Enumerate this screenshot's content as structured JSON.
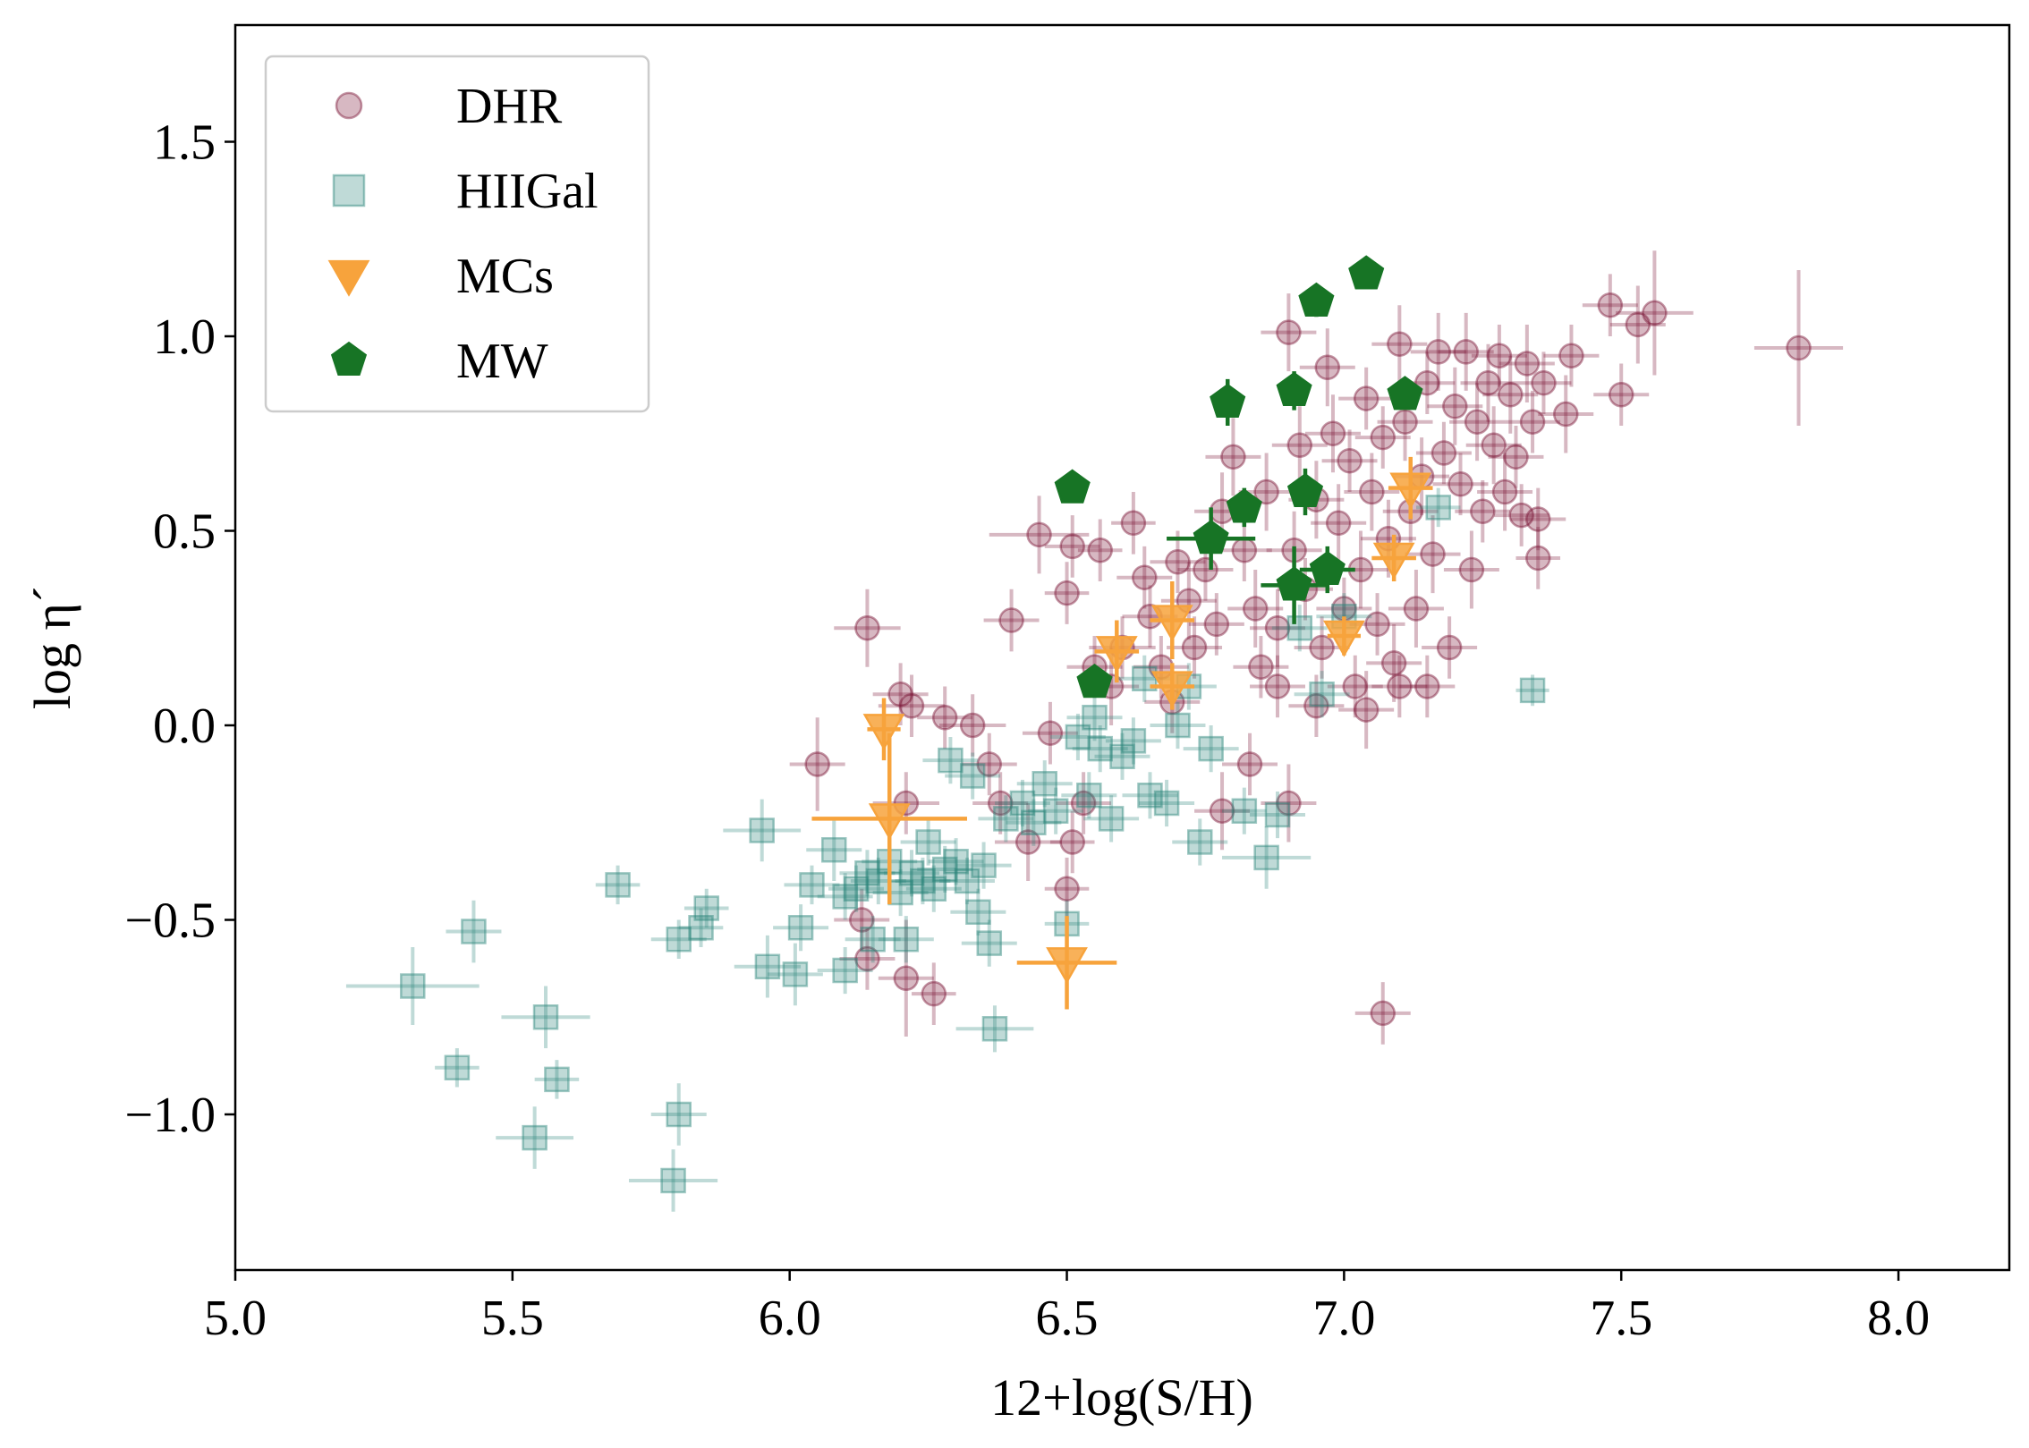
{
  "chart_data": {
    "type": "scatter",
    "title": "",
    "xlabel": "12+log(S/H)",
    "ylabel": "log η´",
    "xlim": [
      5.0,
      8.2
    ],
    "ylim": [
      -1.4,
      1.8
    ],
    "xticks": [
      5.0,
      5.5,
      6.0,
      6.5,
      7.0,
      7.5,
      8.0
    ],
    "xtick_labels": [
      "5.0",
      "5.5",
      "6.0",
      "6.5",
      "7.0",
      "7.5",
      "8.0"
    ],
    "yticks": [
      -1.0,
      -0.5,
      0.0,
      0.5,
      1.0,
      1.5
    ],
    "ytick_labels": [
      "−1.0",
      "−0.5",
      "0.0",
      "0.5",
      "1.0",
      "1.5"
    ],
    "grid": false,
    "legend_position": "top-left",
    "series": [
      {
        "name": "DHR",
        "marker": "circle",
        "color": "#7b1535",
        "alpha": 0.3,
        "points": [
          [
            6.05,
            -0.1,
            0.05,
            0.12
          ],
          [
            6.14,
            0.25,
            0.06,
            0.1
          ],
          [
            6.2,
            0.08,
            0.05,
            0.08
          ],
          [
            6.22,
            0.05,
            0.06,
            0.08
          ],
          [
            6.28,
            0.02,
            0.05,
            0.08
          ],
          [
            6.33,
            0.0,
            0.06,
            0.08
          ],
          [
            6.21,
            -0.2,
            0.06,
            0.08
          ],
          [
            6.13,
            -0.5,
            0.05,
            0.08
          ],
          [
            6.14,
            -0.6,
            0.05,
            0.08
          ],
          [
            6.21,
            -0.65,
            0.05,
            0.15
          ],
          [
            6.26,
            -0.69,
            0.04,
            0.08
          ],
          [
            6.36,
            -0.1,
            0.05,
            0.08
          ],
          [
            6.38,
            -0.2,
            0.05,
            0.08
          ],
          [
            6.43,
            -0.3,
            0.06,
            0.1
          ],
          [
            6.4,
            0.27,
            0.05,
            0.08
          ],
          [
            6.45,
            0.49,
            0.09,
            0.1
          ],
          [
            6.47,
            -0.02,
            0.05,
            0.08
          ],
          [
            6.5,
            0.34,
            0.04,
            0.08
          ],
          [
            6.51,
            0.46,
            0.05,
            0.08
          ],
          [
            6.56,
            0.45,
            0.04,
            0.08
          ],
          [
            6.5,
            -0.42,
            0.04,
            0.08
          ],
          [
            6.51,
            -0.3,
            0.04,
            0.08
          ],
          [
            6.53,
            -0.2,
            0.05,
            0.08
          ],
          [
            6.55,
            0.15,
            0.05,
            0.08
          ],
          [
            6.58,
            0.1,
            0.05,
            0.1
          ],
          [
            6.6,
            0.2,
            0.06,
            0.08
          ],
          [
            6.62,
            0.52,
            0.04,
            0.08
          ],
          [
            6.64,
            0.38,
            0.05,
            0.08
          ],
          [
            6.65,
            0.28,
            0.05,
            0.08
          ],
          [
            6.67,
            0.15,
            0.05,
            0.08
          ],
          [
            6.7,
            0.42,
            0.05,
            0.08
          ],
          [
            6.72,
            0.32,
            0.05,
            0.1
          ],
          [
            6.73,
            0.2,
            0.05,
            0.08
          ],
          [
            6.75,
            0.4,
            0.05,
            0.08
          ],
          [
            6.77,
            0.26,
            0.05,
            0.08
          ],
          [
            6.78,
            0.55,
            0.05,
            0.1
          ],
          [
            6.8,
            0.69,
            0.05,
            0.1
          ],
          [
            6.82,
            0.45,
            0.05,
            0.08
          ],
          [
            6.84,
            0.3,
            0.05,
            0.1
          ],
          [
            6.85,
            0.15,
            0.05,
            0.08
          ],
          [
            6.86,
            0.6,
            0.05,
            0.1
          ],
          [
            6.88,
            0.25,
            0.05,
            0.1
          ],
          [
            6.9,
            1.01,
            0.05,
            0.1
          ],
          [
            6.91,
            0.45,
            0.05,
            0.1
          ],
          [
            6.92,
            0.72,
            0.05,
            0.1
          ],
          [
            6.93,
            0.35,
            0.05,
            0.08
          ],
          [
            6.95,
            0.58,
            0.05,
            0.1
          ],
          [
            6.96,
            0.2,
            0.05,
            0.08
          ],
          [
            6.97,
            0.92,
            0.05,
            0.1
          ],
          [
            6.98,
            0.75,
            0.05,
            0.1
          ],
          [
            6.99,
            0.52,
            0.05,
            0.1
          ],
          [
            7.0,
            0.3,
            0.05,
            0.08
          ],
          [
            7.01,
            0.68,
            0.05,
            0.08
          ],
          [
            7.02,
            0.1,
            0.05,
            0.08
          ],
          [
            7.03,
            0.4,
            0.05,
            0.1
          ],
          [
            7.04,
            0.84,
            0.05,
            0.08
          ],
          [
            7.05,
            0.6,
            0.05,
            0.1
          ],
          [
            7.06,
            0.26,
            0.05,
            0.08
          ],
          [
            7.07,
            0.74,
            0.05,
            0.08
          ],
          [
            7.08,
            0.48,
            0.05,
            0.1
          ],
          [
            7.09,
            0.16,
            0.05,
            0.1
          ],
          [
            7.1,
            0.98,
            0.05,
            0.1
          ],
          [
            7.11,
            0.78,
            0.05,
            0.1
          ],
          [
            7.12,
            0.55,
            0.05,
            0.08
          ],
          [
            7.13,
            0.3,
            0.05,
            0.1
          ],
          [
            7.14,
            0.64,
            0.05,
            0.1
          ],
          [
            7.15,
            0.88,
            0.05,
            0.08
          ],
          [
            7.16,
            0.44,
            0.05,
            0.1
          ],
          [
            7.17,
            0.96,
            0.05,
            0.1
          ],
          [
            7.18,
            0.7,
            0.05,
            0.08
          ],
          [
            7.19,
            0.2,
            0.05,
            0.08
          ],
          [
            7.2,
            0.82,
            0.05,
            0.1
          ],
          [
            7.21,
            0.62,
            0.05,
            0.08
          ],
          [
            7.22,
            0.96,
            0.05,
            0.1
          ],
          [
            7.23,
            0.4,
            0.05,
            0.1
          ],
          [
            7.24,
            0.78,
            0.05,
            0.1
          ],
          [
            7.25,
            0.55,
            0.05,
            0.08
          ],
          [
            7.26,
            0.88,
            0.05,
            0.1
          ],
          [
            7.27,
            0.72,
            0.05,
            0.1
          ],
          [
            7.28,
            0.95,
            0.05,
            0.08
          ],
          [
            7.29,
            0.6,
            0.05,
            0.1
          ],
          [
            7.3,
            0.85,
            0.05,
            0.1
          ],
          [
            7.31,
            0.69,
            0.05,
            0.08
          ],
          [
            7.32,
            0.54,
            0.05,
            0.08
          ],
          [
            7.33,
            0.93,
            0.05,
            0.1
          ],
          [
            7.34,
            0.78,
            0.05,
            0.08
          ],
          [
            7.35,
            0.53,
            0.05,
            0.08
          ],
          [
            7.35,
            0.43,
            0.04,
            0.08
          ],
          [
            7.36,
            0.88,
            0.05,
            0.08
          ],
          [
            7.4,
            0.8,
            0.05,
            0.1
          ],
          [
            7.41,
            0.95,
            0.05,
            0.08
          ],
          [
            7.48,
            1.08,
            0.05,
            0.08
          ],
          [
            7.5,
            0.85,
            0.05,
            0.08
          ],
          [
            7.53,
            1.03,
            0.05,
            0.1
          ],
          [
            7.56,
            1.06,
            0.07,
            0.16
          ],
          [
            7.82,
            0.97,
            0.08,
            0.2
          ],
          [
            7.07,
            -0.74,
            0.05,
            0.08
          ],
          [
            6.95,
            0.05,
            0.05,
            0.08
          ],
          [
            7.04,
            0.04,
            0.05,
            0.1
          ],
          [
            7.1,
            0.1,
            0.05,
            0.08
          ],
          [
            7.15,
            0.1,
            0.05,
            0.08
          ],
          [
            6.88,
            0.1,
            0.05,
            0.08
          ],
          [
            6.83,
            -0.1,
            0.05,
            0.08
          ],
          [
            6.9,
            -0.2,
            0.05,
            0.1
          ],
          [
            6.78,
            -0.22,
            0.05,
            0.1
          ],
          [
            6.69,
            0.06,
            0.05,
            0.08
          ]
        ]
      },
      {
        "name": "HIIGal",
        "marker": "square",
        "color": "#2a8479",
        "alpha": 0.3,
        "points": [
          [
            5.32,
            -0.67,
            0.12,
            0.1
          ],
          [
            5.4,
            -0.88,
            0.04,
            0.05
          ],
          [
            5.43,
            -0.53,
            0.05,
            0.08
          ],
          [
            5.54,
            -1.06,
            0.07,
            0.08
          ],
          [
            5.56,
            -0.75,
            0.08,
            0.08
          ],
          [
            5.58,
            -0.91,
            0.04,
            0.05
          ],
          [
            5.69,
            -0.41,
            0.04,
            0.05
          ],
          [
            5.8,
            -1.0,
            0.05,
            0.08
          ],
          [
            5.8,
            -0.55,
            0.05,
            0.05
          ],
          [
            5.79,
            -1.17,
            0.08,
            0.08
          ],
          [
            5.84,
            -0.52,
            0.04,
            0.05
          ],
          [
            5.85,
            -0.47,
            0.04,
            0.05
          ],
          [
            5.95,
            -0.27,
            0.07,
            0.08
          ],
          [
            5.96,
            -0.62,
            0.06,
            0.08
          ],
          [
            6.01,
            -0.64,
            0.05,
            0.08
          ],
          [
            6.02,
            -0.52,
            0.05,
            0.06
          ],
          [
            6.04,
            -0.41,
            0.05,
            0.05
          ],
          [
            6.08,
            -0.32,
            0.05,
            0.08
          ],
          [
            6.1,
            -0.44,
            0.05,
            0.06
          ],
          [
            6.12,
            -0.42,
            0.05,
            0.06
          ],
          [
            6.14,
            -0.38,
            0.05,
            0.06
          ],
          [
            6.16,
            -0.4,
            0.05,
            0.06
          ],
          [
            6.18,
            -0.35,
            0.05,
            0.06
          ],
          [
            6.2,
            -0.43,
            0.05,
            0.06
          ],
          [
            6.21,
            -0.55,
            0.05,
            0.06
          ],
          [
            6.22,
            -0.38,
            0.05,
            0.06
          ],
          [
            6.24,
            -0.4,
            0.05,
            0.06
          ],
          [
            6.26,
            -0.42,
            0.05,
            0.06
          ],
          [
            6.28,
            -0.37,
            0.05,
            0.06
          ],
          [
            6.29,
            -0.09,
            0.05,
            0.06
          ],
          [
            6.3,
            -0.35,
            0.05,
            0.06
          ],
          [
            6.32,
            -0.4,
            0.05,
            0.06
          ],
          [
            6.33,
            -0.13,
            0.05,
            0.06
          ],
          [
            6.34,
            -0.48,
            0.05,
            0.06
          ],
          [
            6.35,
            -0.36,
            0.05,
            0.06
          ],
          [
            6.36,
            -0.56,
            0.05,
            0.06
          ],
          [
            6.37,
            -0.78,
            0.07,
            0.06
          ],
          [
            6.39,
            -0.24,
            0.05,
            0.06
          ],
          [
            6.42,
            -0.2,
            0.05,
            0.06
          ],
          [
            6.44,
            -0.25,
            0.05,
            0.06
          ],
          [
            6.46,
            -0.15,
            0.05,
            0.06
          ],
          [
            6.48,
            -0.22,
            0.05,
            0.06
          ],
          [
            6.5,
            -0.51,
            0.04,
            0.06
          ],
          [
            6.52,
            -0.03,
            0.05,
            0.06
          ],
          [
            6.54,
            -0.18,
            0.05,
            0.06
          ],
          [
            6.56,
            -0.06,
            0.05,
            0.06
          ],
          [
            6.58,
            -0.24,
            0.05,
            0.06
          ],
          [
            6.6,
            -0.08,
            0.05,
            0.06
          ],
          [
            6.62,
            -0.04,
            0.05,
            0.06
          ],
          [
            6.65,
            -0.18,
            0.05,
            0.06
          ],
          [
            6.68,
            -0.2,
            0.05,
            0.06
          ],
          [
            6.7,
            0.0,
            0.05,
            0.06
          ],
          [
            6.72,
            0.1,
            0.05,
            0.06
          ],
          [
            6.74,
            -0.3,
            0.05,
            0.06
          ],
          [
            6.76,
            -0.06,
            0.05,
            0.06
          ],
          [
            6.82,
            -0.22,
            0.04,
            0.06
          ],
          [
            6.88,
            -0.23,
            0.05,
            0.06
          ],
          [
            6.86,
            -0.34,
            0.08,
            0.08
          ],
          [
            6.92,
            0.25,
            0.05,
            0.06
          ],
          [
            6.96,
            0.08,
            0.05,
            0.06
          ],
          [
            7.0,
            0.28,
            0.05,
            0.06
          ],
          [
            7.17,
            0.56,
            0.04,
            0.05
          ],
          [
            7.34,
            0.09,
            0.03,
            0.04
          ],
          [
            6.15,
            -0.55,
            0.05,
            0.06
          ],
          [
            6.1,
            -0.63,
            0.05,
            0.06
          ],
          [
            6.25,
            -0.3,
            0.05,
            0.06
          ],
          [
            6.55,
            0.02,
            0.05,
            0.06
          ],
          [
            6.64,
            0.12,
            0.05,
            0.06
          ]
        ]
      },
      {
        "name": "MCs",
        "marker": "triangle-down",
        "color": "#f7a33c",
        "alpha": 0.85,
        "points": [
          [
            6.17,
            -0.01,
            0.03,
            0.08
          ],
          [
            6.18,
            -0.24,
            0.14,
            0.22
          ],
          [
            6.5,
            -0.61,
            0.09,
            0.12
          ],
          [
            6.59,
            0.19,
            0.04,
            0.08
          ],
          [
            6.69,
            0.27,
            0.04,
            0.1
          ],
          [
            6.69,
            0.1,
            0.04,
            0.06
          ],
          [
            7.0,
            0.23,
            0.03,
            0.05
          ],
          [
            7.09,
            0.43,
            0.04,
            0.06
          ],
          [
            7.12,
            0.61,
            0.04,
            0.08
          ]
        ]
      },
      {
        "name": "MW",
        "marker": "pentagon",
        "color": "#177425",
        "alpha": 1.0,
        "points": [
          [
            6.51,
            0.61,
            0.0,
            0.0
          ],
          [
            6.55,
            0.11,
            0.0,
            0.0
          ],
          [
            6.76,
            0.48,
            0.08,
            0.08
          ],
          [
            6.79,
            0.83,
            0.0,
            0.06
          ],
          [
            6.82,
            0.56,
            0.0,
            0.05
          ],
          [
            6.91,
            0.86,
            0.0,
            0.05
          ],
          [
            6.91,
            0.36,
            0.06,
            0.1
          ],
          [
            6.93,
            0.6,
            0.0,
            0.06
          ],
          [
            6.95,
            1.09,
            0.0,
            0.04
          ],
          [
            6.97,
            0.4,
            0.05,
            0.06
          ],
          [
            7.04,
            1.16,
            0.0,
            0.0
          ],
          [
            7.11,
            0.85,
            0.0,
            0.0
          ]
        ]
      }
    ]
  }
}
